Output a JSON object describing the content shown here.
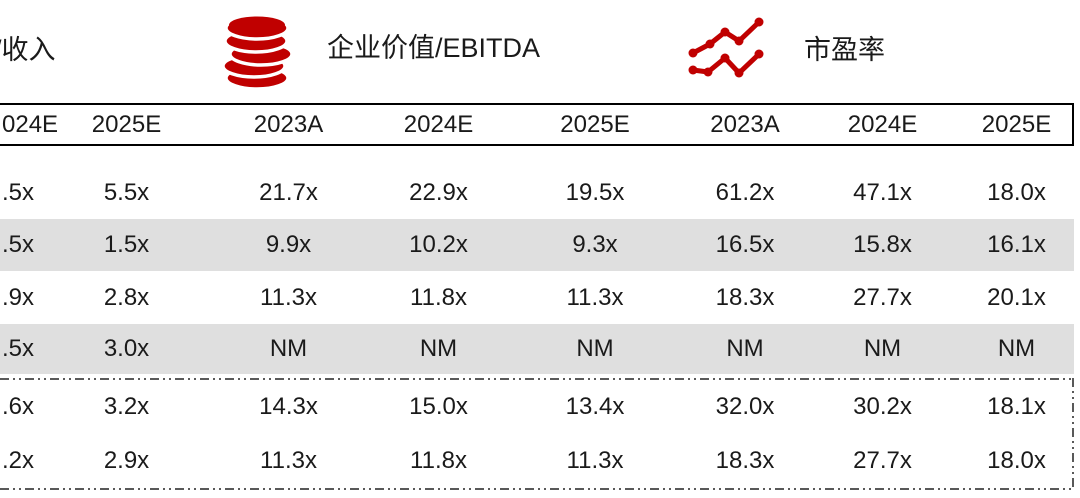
{
  "colors": {
    "accent_red": "#C00000",
    "row_shade_gray": "#DFDFDF",
    "dash_gray": "#595959",
    "border_black": "#000000",
    "text": "#1A1A1A"
  },
  "legend": {
    "revenue_label": "/收入",
    "ebitda_label": "企业价值/EBITDA",
    "ebitda_icon": "coins-icon",
    "pe_label": "市盈率",
    "pe_icon": "line-chart-icon"
  },
  "chart_data": {
    "type": "table",
    "section_labels": [
      "/收入",
      "企业价值/EBITDA",
      "市盈率"
    ],
    "column_headers": [
      "024E",
      "2025E",
      "2023A",
      "2024E",
      "2025E",
      "2023A",
      "2024E",
      "2025E"
    ],
    "rows": [
      {
        "shaded": false,
        "values": [
          ".5x",
          "5.5x",
          "21.7x",
          "22.9x",
          "19.5x",
          "61.2x",
          "47.1x",
          "18.0x"
        ]
      },
      {
        "shaded": true,
        "values": [
          ".5x",
          "1.5x",
          "9.9x",
          "10.2x",
          "9.3x",
          "16.5x",
          "15.8x",
          "16.1x"
        ]
      },
      {
        "shaded": false,
        "values": [
          ".9x",
          "2.8x",
          "11.3x",
          "11.8x",
          "11.3x",
          "18.3x",
          "27.7x",
          "20.1x"
        ]
      },
      {
        "shaded": true,
        "values": [
          ".5x",
          "3.0x",
          "NM",
          "NM",
          "NM",
          "NM",
          "NM",
          "NM"
        ]
      }
    ],
    "summary_rows": [
      {
        "values": [
          ".6x",
          "3.2x",
          "14.3x",
          "15.0x",
          "13.4x",
          "32.0x",
          "30.2x",
          "18.1x"
        ]
      },
      {
        "values": [
          ".2x",
          "2.9x",
          "11.3x",
          "11.8x",
          "11.3x",
          "18.3x",
          "27.7x",
          "18.0x"
        ]
      }
    ]
  }
}
